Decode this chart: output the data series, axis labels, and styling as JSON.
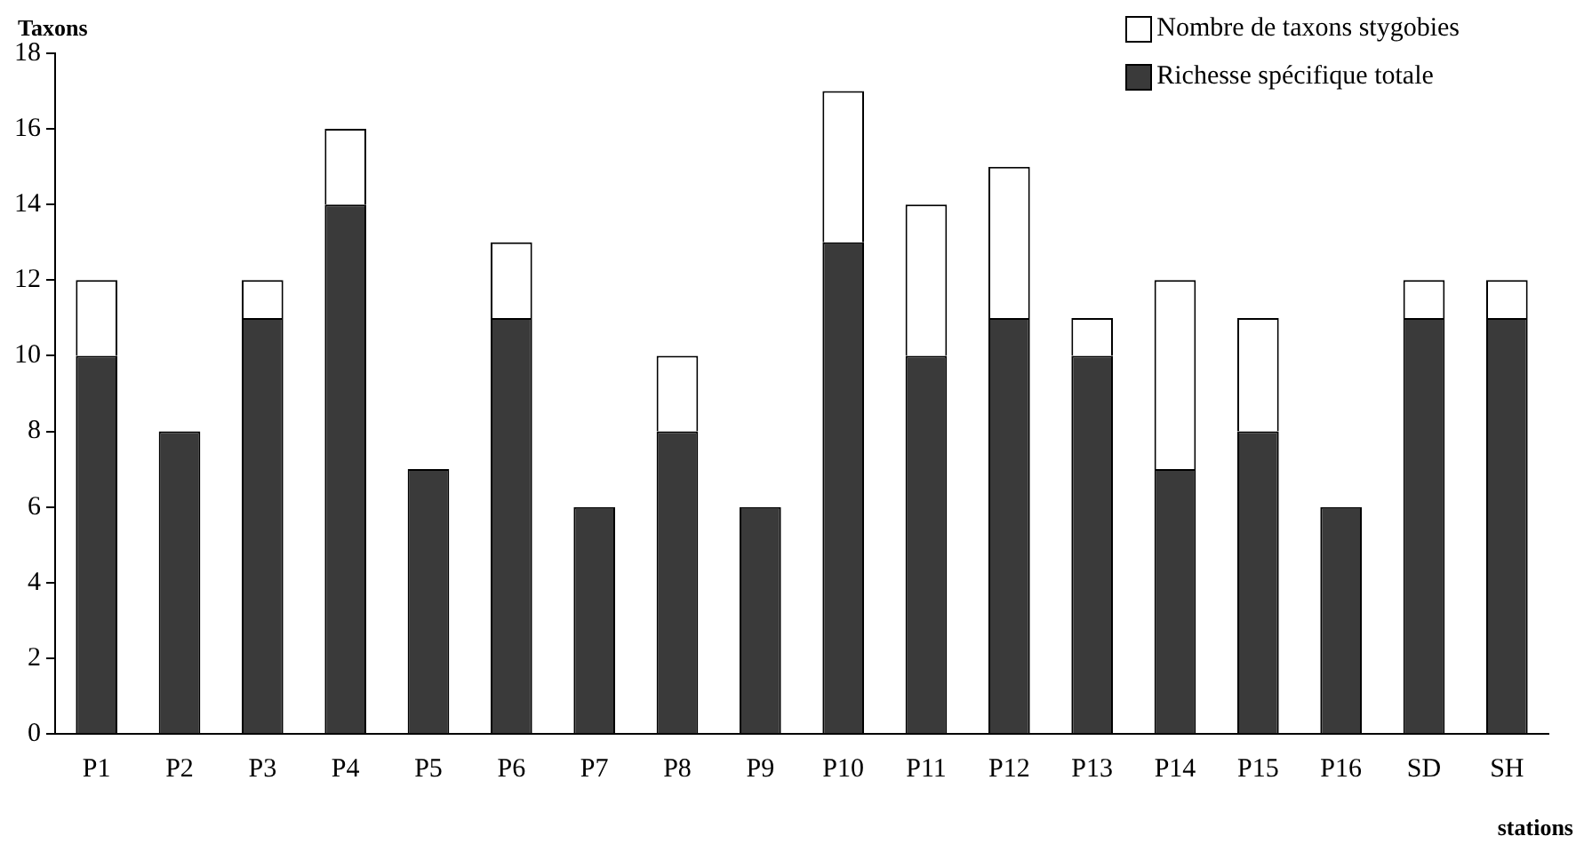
{
  "chart_data": {
    "type": "bar",
    "stacked": true,
    "xlabel": "stations",
    "ylabel": "Taxons",
    "categories": [
      "P1",
      "P2",
      "P3",
      "P4",
      "P5",
      "P6",
      "P7",
      "P8",
      "P9",
      "P10",
      "P11",
      "P12",
      "P13",
      "P14",
      "P15",
      "P16",
      "SD",
      "SH"
    ],
    "series": [
      {
        "name": "Richesse spécifique totale",
        "color": "#3a3a3a",
        "values": [
          10,
          8,
          11,
          14,
          7,
          11,
          6,
          8,
          6,
          13,
          10,
          11,
          10,
          7,
          8,
          6,
          11,
          11
        ]
      },
      {
        "name": "Nombre de taxons stygobies",
        "color": "#ffffff",
        "values": [
          2,
          0,
          1,
          2,
          0,
          2,
          0,
          2,
          0,
          4,
          4,
          4,
          1,
          5,
          3,
          0,
          1,
          1
        ]
      }
    ],
    "ylim": [
      0,
      18
    ],
    "yticks": [
      0,
      2,
      4,
      6,
      8,
      10,
      12,
      14,
      16,
      18
    ],
    "grid": false,
    "legend": "top right"
  }
}
